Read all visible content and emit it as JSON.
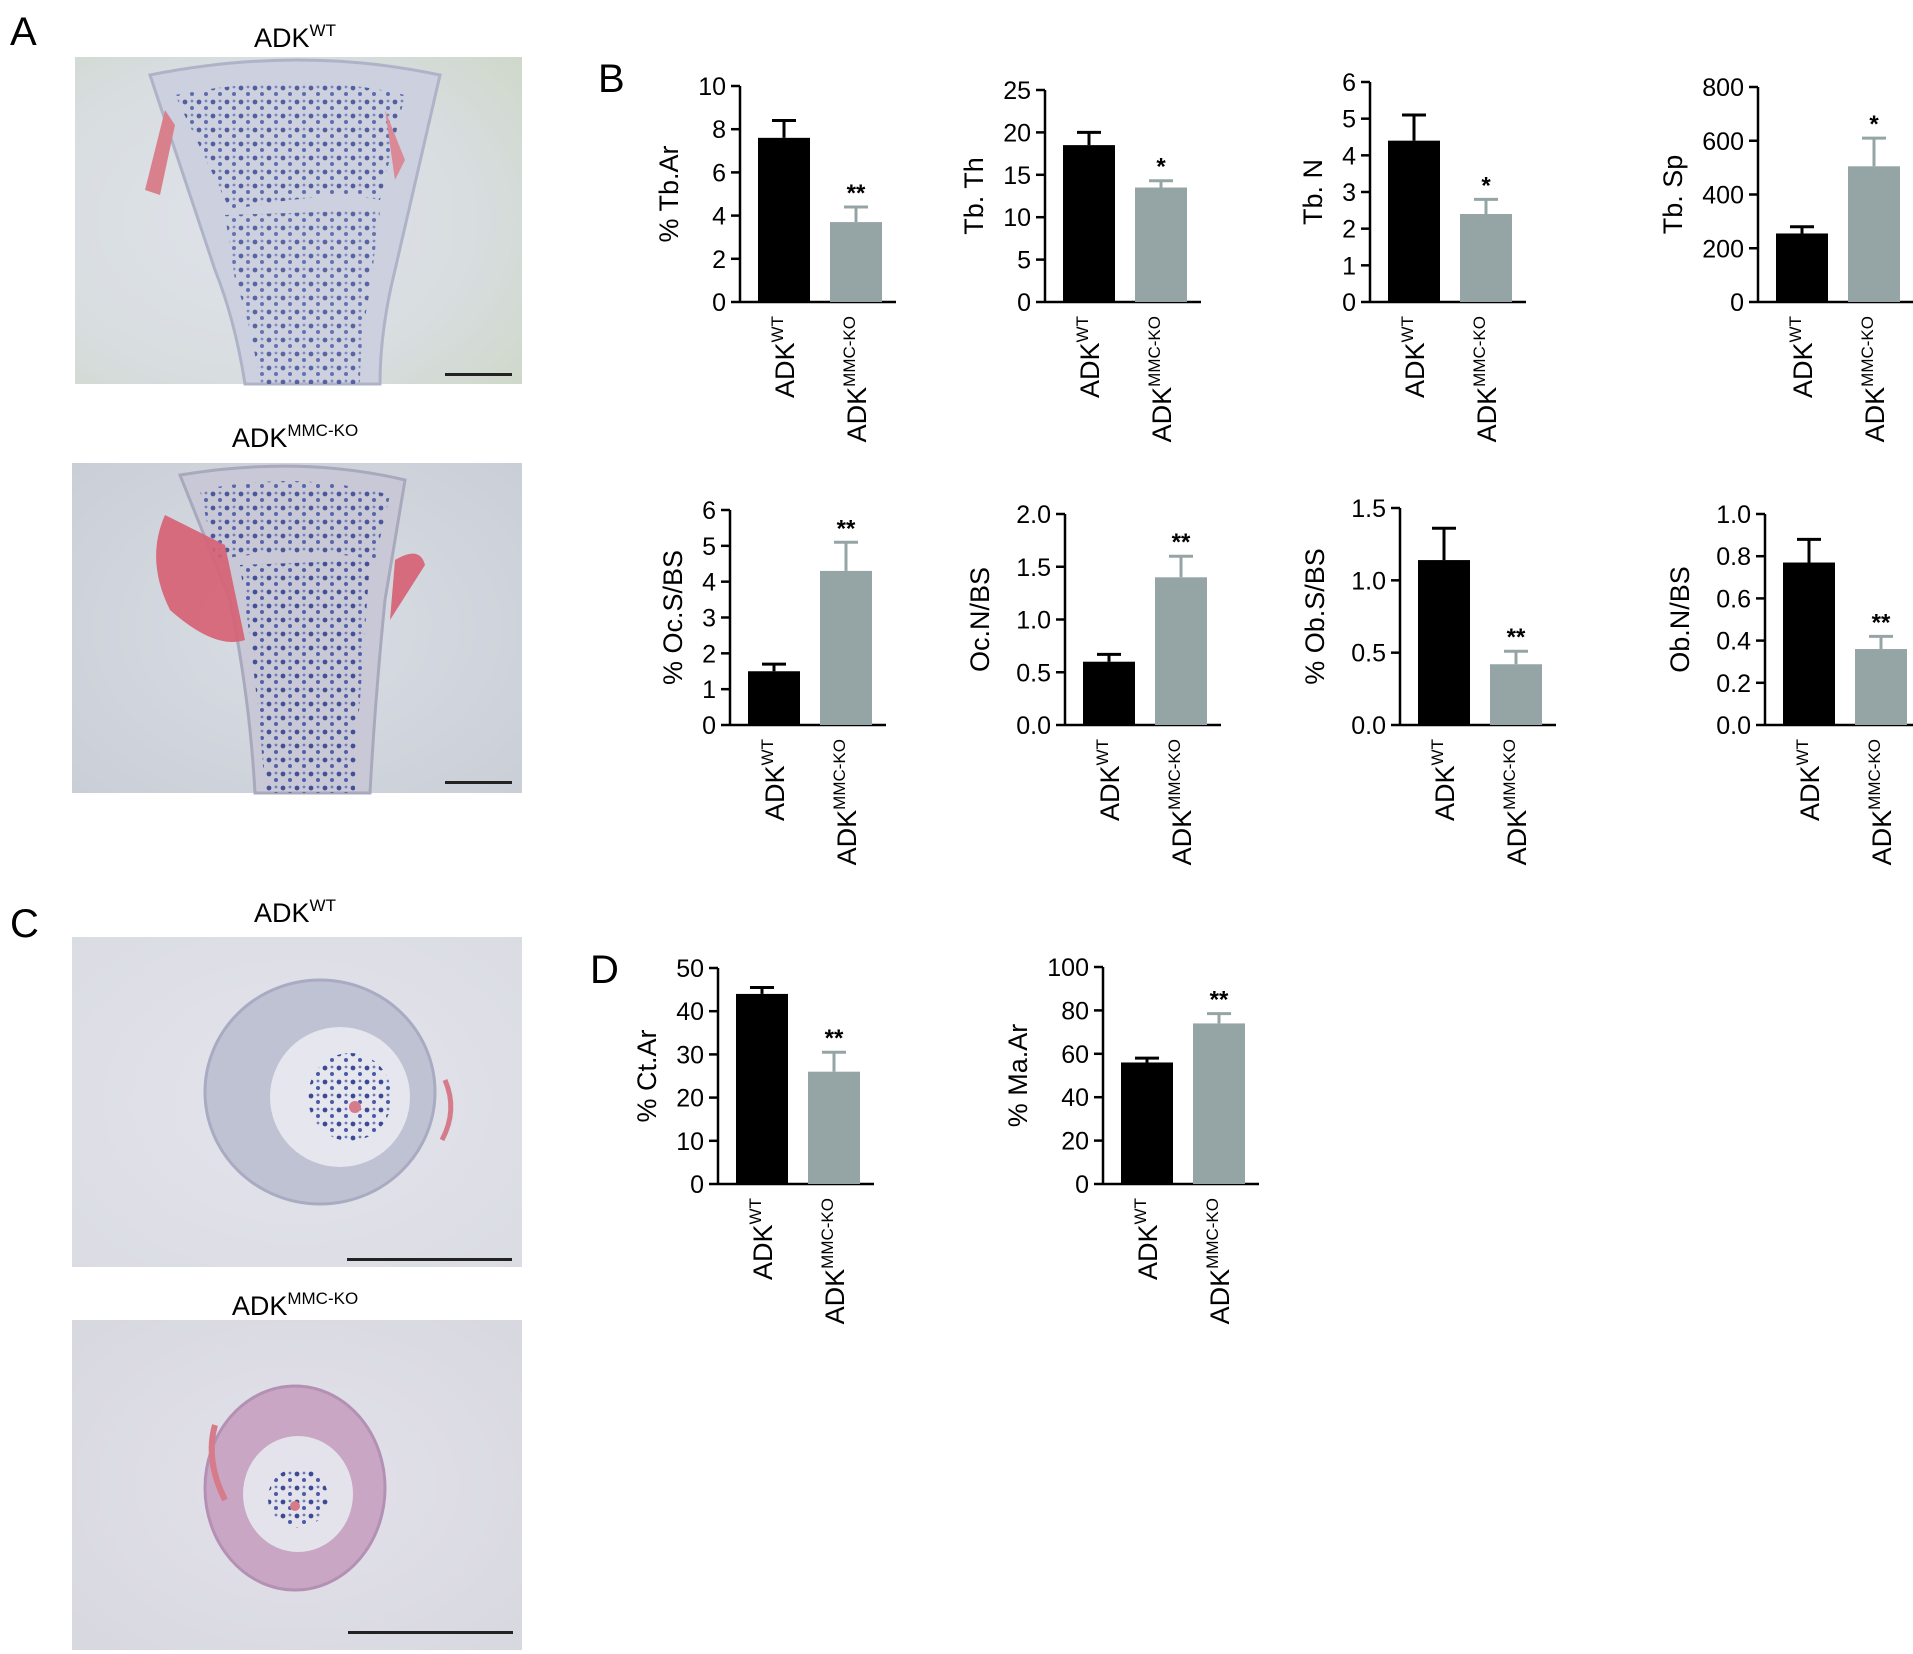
{
  "panel_labels": {
    "A": "A",
    "B": "B",
    "C": "C",
    "D": "D"
  },
  "groups": {
    "wt_base": "ADK",
    "wt_sup": "WT",
    "ko_base": "ADK",
    "ko_sup": "MMC-KO"
  },
  "colors": {
    "wt_bar": "#000000",
    "ko_bar": "#95a5a6"
  },
  "histology": {
    "A": {
      "top_label_base": "ADK",
      "top_label_sup": "WT",
      "bottom_label_base": "ADK",
      "bottom_label_sup": "MMC-KO"
    },
    "C": {
      "top_label_base": "ADK",
      "top_label_sup": "WT",
      "bottom_label_base": "ADK",
      "bottom_label_sup": "MMC-KO"
    }
  },
  "chart_data": [
    {
      "type": "bar",
      "panel": "B",
      "ylabel": "% Tb.Ar",
      "categories": [
        "ADKWT",
        "ADKMMC-KO"
      ],
      "values": [
        7.6,
        3.7
      ],
      "errors": [
        0.8,
        0.7
      ],
      "significance": [
        "",
        "**"
      ],
      "ylim": [
        0,
        10
      ],
      "yticks": [
        "0",
        "2",
        "4",
        "6",
        "8",
        "10"
      ]
    },
    {
      "type": "bar",
      "panel": "B",
      "ylabel": "Tb. Th",
      "categories": [
        "ADKWT",
        "ADKMMC-KO"
      ],
      "values": [
        18.5,
        13.5
      ],
      "errors": [
        1.5,
        0.8
      ],
      "significance": [
        "",
        "*"
      ],
      "ylim": [
        0,
        25
      ],
      "yticks": [
        "0",
        "5",
        "10",
        "15",
        "20",
        "25"
      ]
    },
    {
      "type": "bar",
      "panel": "B",
      "ylabel": "Tb. N",
      "categories": [
        "ADKWT",
        "ADKMMC-KO"
      ],
      "values": [
        4.4,
        2.4
      ],
      "errors": [
        0.7,
        0.4
      ],
      "significance": [
        "",
        "*"
      ],
      "ylim": [
        0,
        6
      ],
      "yticks": [
        "0",
        "1",
        "2",
        "3",
        "4",
        "5",
        "6"
      ]
    },
    {
      "type": "bar",
      "panel": "B",
      "ylabel": "Tb. Sp",
      "categories": [
        "ADKWT",
        "ADKMMC-KO"
      ],
      "values": [
        255,
        505
      ],
      "errors": [
        25,
        105
      ],
      "significance": [
        "",
        "*"
      ],
      "ylim": [
        0,
        800
      ],
      "yticks": [
        "0",
        "200",
        "400",
        "600",
        "800"
      ]
    },
    {
      "type": "bar",
      "panel": "B",
      "ylabel": "% Oc.S/BS",
      "categories": [
        "ADKWT",
        "ADKMMC-KO"
      ],
      "values": [
        1.5,
        4.3
      ],
      "errors": [
        0.2,
        0.8
      ],
      "significance": [
        "",
        "**"
      ],
      "ylim": [
        0,
        6
      ],
      "yticks": [
        "0",
        "1",
        "2",
        "3",
        "4",
        "5",
        "6"
      ]
    },
    {
      "type": "bar",
      "panel": "B",
      "ylabel": "Oc.N/BS",
      "categories": [
        "ADKWT",
        "ADKMMC-KO"
      ],
      "values": [
        0.6,
        1.4
      ],
      "errors": [
        0.07,
        0.2
      ],
      "significance": [
        "",
        "**"
      ],
      "ylim": [
        0,
        2.0
      ],
      "yticks": [
        "0.0",
        "0.5",
        "1.0",
        "1.5",
        "2.0"
      ]
    },
    {
      "type": "bar",
      "panel": "B",
      "ylabel": "% Ob.S/BS",
      "categories": [
        "ADKWT",
        "ADKMMC-KO"
      ],
      "values": [
        1.14,
        0.42
      ],
      "errors": [
        0.22,
        0.09
      ],
      "significance": [
        "",
        "**"
      ],
      "ylim": [
        0,
        1.5
      ],
      "yticks": [
        "0.0",
        "0.5",
        "1.0",
        "1.5"
      ]
    },
    {
      "type": "bar",
      "panel": "B",
      "ylabel": "Ob.N/BS",
      "categories": [
        "ADKWT",
        "ADKMMC-KO"
      ],
      "values": [
        0.77,
        0.36
      ],
      "errors": [
        0.11,
        0.06
      ],
      "significance": [
        "",
        "**"
      ],
      "ylim": [
        0,
        1.0
      ],
      "yticks": [
        "0.0",
        "0.2",
        "0.4",
        "0.6",
        "0.8",
        "1.0"
      ]
    },
    {
      "type": "bar",
      "panel": "D",
      "ylabel": "% Ct.Ar",
      "categories": [
        "ADKWT",
        "ADKMMC-KO"
      ],
      "values": [
        44,
        26
      ],
      "errors": [
        1.5,
        4.5
      ],
      "significance": [
        "",
        "**"
      ],
      "ylim": [
        0,
        50
      ],
      "yticks": [
        "0",
        "10",
        "20",
        "30",
        "40",
        "50"
      ]
    },
    {
      "type": "bar",
      "panel": "D",
      "ylabel": "% Ma.Ar",
      "categories": [
        "ADKWT",
        "ADKMMC-KO"
      ],
      "values": [
        56,
        74
      ],
      "errors": [
        2,
        4.5
      ],
      "significance": [
        "",
        "**"
      ],
      "ylim": [
        0,
        100
      ],
      "yticks": [
        "0",
        "20",
        "40",
        "60",
        "80",
        "100"
      ]
    }
  ]
}
